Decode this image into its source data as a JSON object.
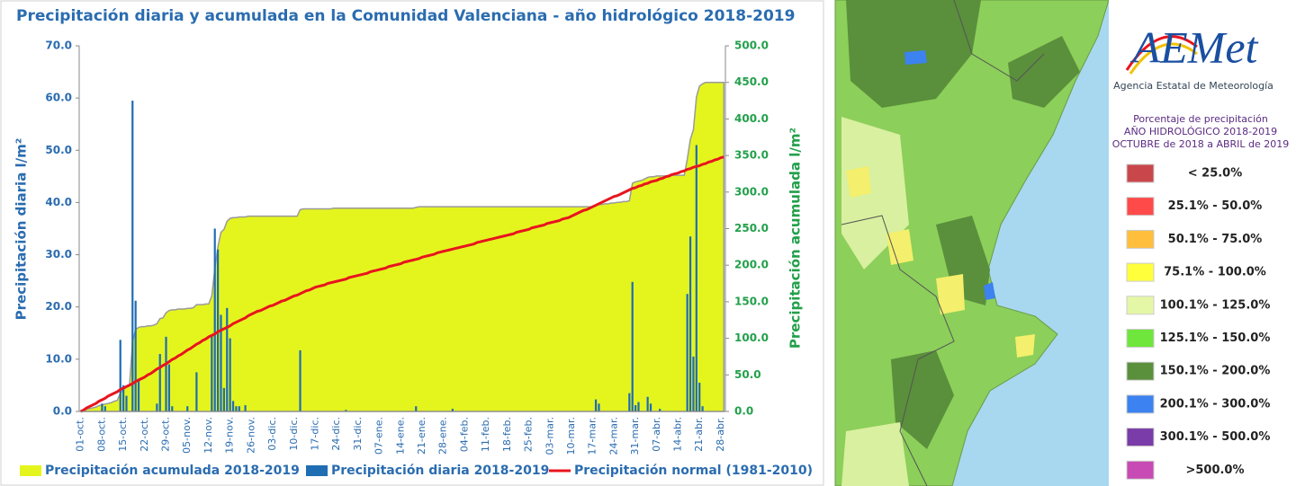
{
  "chart_data": {
    "type": "combo",
    "title": "Precipitación diaria y acumulada en la Comunidad Valenciana - año hidrológico 2018-2019",
    "y_label": "Precipitación  diaria  l/m²",
    "y2_label": "Precipitación  acumulada  l/m²",
    "categories": [
      "01-oct.",
      null,
      null,
      null,
      null,
      null,
      null,
      "08-oct.",
      null,
      null,
      null,
      null,
      null,
      null,
      "15-oct.",
      null,
      null,
      null,
      null,
      null,
      null,
      "22-oct.",
      null,
      null,
      null,
      null,
      null,
      null,
      "29-oct.",
      null,
      null,
      null,
      null,
      null,
      null,
      "05-nov.",
      null,
      null,
      null,
      null,
      null,
      null,
      "12-nov.",
      null,
      null,
      null,
      null,
      null,
      null,
      "19-nov.",
      null,
      null,
      null,
      null,
      null,
      null,
      "26-nov.",
      null,
      null,
      null,
      null,
      null,
      null,
      "03-dic.",
      null,
      null,
      null,
      null,
      null,
      null,
      "10-dic.",
      null,
      null,
      null,
      null,
      null,
      null,
      "17-dic.",
      null,
      null,
      null,
      null,
      null,
      null,
      "24-dic.",
      null,
      null,
      null,
      null,
      null,
      null,
      "31-dic.",
      null,
      null,
      null,
      null,
      null,
      null,
      "07-ene.",
      null,
      null,
      null,
      null,
      null,
      null,
      "14-ene.",
      null,
      null,
      null,
      null,
      null,
      null,
      "21-ene.",
      null,
      null,
      null,
      null,
      null,
      null,
      "28-ene.",
      null,
      null,
      null,
      null,
      null,
      null,
      "04-feb.",
      null,
      null,
      null,
      null,
      null,
      null,
      "11-feb.",
      null,
      null,
      null,
      null,
      null,
      null,
      "18-feb.",
      null,
      null,
      null,
      null,
      null,
      null,
      "25-feb.",
      null,
      null,
      null,
      null,
      null,
      null,
      "03-mar.",
      null,
      null,
      null,
      null,
      null,
      null,
      "10-mar.",
      null,
      null,
      null,
      null,
      null,
      null,
      "17-mar.",
      null,
      null,
      null,
      null,
      null,
      null,
      "24-mar.",
      null,
      null,
      null,
      null,
      null,
      null,
      "31-mar.",
      null,
      null,
      null,
      null,
      null,
      null,
      "07-abr.",
      null,
      null,
      null,
      null,
      null,
      null,
      "14-abr.",
      null,
      null,
      null,
      null,
      null,
      null,
      "21-abr.",
      null,
      null,
      null,
      null,
      null,
      null,
      "28-abr.",
      null
    ],
    "series": [
      {
        "name": "Precipitación acumulada 2018-2019",
        "type": "area",
        "axis": "y2",
        "color": "#e4f51e",
        "values": [
          1,
          2,
          3,
          4,
          5,
          6,
          8,
          9,
          10,
          11,
          12,
          14,
          15,
          25,
          30,
          33,
          35,
          95,
          112,
          115,
          116,
          116,
          117,
          117,
          118,
          120,
          127,
          128,
          135,
          138,
          139,
          139,
          140,
          140,
          140,
          141,
          141,
          142,
          146,
          146,
          146,
          147,
          147,
          158,
          195,
          225,
          245,
          249,
          260,
          264,
          265,
          265,
          266,
          266,
          266,
          267,
          267,
          267,
          267,
          267,
          267,
          267,
          267,
          267,
          267,
          267,
          267,
          267,
          267,
          267,
          267,
          267,
          276,
          277,
          277,
          277,
          277,
          277,
          277,
          277,
          277,
          277,
          277,
          278,
          278,
          278,
          278,
          278,
          278,
          278,
          278,
          278,
          278,
          278,
          278,
          278,
          278,
          278,
          278,
          278,
          278,
          278,
          278,
          278,
          278,
          278,
          278,
          278,
          278,
          278,
          279,
          280,
          280,
          280,
          280,
          280,
          280,
          280,
          280,
          280,
          280,
          280,
          280,
          280,
          280,
          280,
          280,
          280,
          280,
          280,
          280,
          280,
          280,
          280,
          280,
          280,
          280,
          280,
          280,
          280,
          280,
          280,
          280,
          280,
          280,
          280,
          280,
          280,
          280,
          280,
          280,
          280,
          280,
          280,
          280,
          280,
          280,
          280,
          280,
          280,
          280,
          280,
          280,
          280,
          280,
          280,
          280,
          280,
          280,
          282,
          283,
          283,
          284,
          284,
          285,
          285,
          286,
          286,
          287,
          287,
          288,
          312,
          314,
          315,
          316,
          318,
          320,
          321,
          321,
          322,
          322,
          322,
          322,
          322,
          323,
          323,
          323,
          323,
          323,
          345,
          372,
          385,
          430,
          445,
          448,
          450,
          450,
          450,
          450,
          450,
          450,
          450
        ]
      },
      {
        "name": "Precipitación diaria 2018-2019",
        "type": "bar",
        "color": "#1f6db2",
        "values": [
          0,
          0,
          0,
          0,
          0,
          0,
          0,
          1.5,
          1,
          0,
          0,
          0,
          0,
          13.7,
          5,
          3,
          0,
          59.5,
          21.2,
          6,
          0,
          0,
          0,
          0,
          0,
          1.5,
          11,
          0,
          14.3,
          9,
          1,
          0,
          0,
          0,
          0,
          1,
          0,
          0,
          7.5,
          0,
          0,
          0,
          0,
          14.5,
          35,
          31,
          18.5,
          4.5,
          19.8,
          14,
          2,
          1,
          1,
          0,
          1.2,
          0,
          0,
          0,
          0,
          0,
          0,
          0,
          0,
          0,
          0,
          0,
          0,
          0,
          0,
          0,
          0,
          0,
          11.7,
          0,
          0,
          0,
          0,
          0,
          0,
          0,
          0,
          0,
          0,
          0,
          0,
          0,
          0,
          0.3,
          0,
          0,
          0,
          0,
          0,
          0,
          0,
          0,
          0,
          0,
          0,
          0,
          0,
          0,
          0,
          0,
          0,
          0,
          0,
          0,
          0,
          0,
          1,
          0,
          0,
          0,
          0,
          0,
          0,
          0,
          0,
          0,
          0,
          0,
          0.5,
          0,
          0,
          0,
          0,
          0,
          0,
          0,
          0,
          0,
          0,
          0,
          0,
          0,
          0,
          0,
          0,
          0,
          0,
          0,
          0,
          0,
          0,
          0,
          0,
          0,
          0,
          0,
          0,
          0,
          0,
          0,
          0,
          0,
          0,
          0,
          0,
          0,
          0,
          0,
          0,
          0,
          0,
          0,
          0,
          0,
          0,
          2.3,
          1.5,
          0,
          0,
          0,
          0,
          0,
          0,
          0,
          0,
          0,
          3.5,
          24.8,
          1.2,
          1.8,
          0,
          0,
          2.8,
          1.5,
          0,
          0,
          0.5,
          0,
          0,
          0,
          0,
          0,
          0,
          0,
          0,
          22.5,
          33.5,
          10.5,
          51,
          5.5,
          1,
          0,
          0,
          0,
          0,
          0,
          0,
          0
        ]
      },
      {
        "name": "Precipitación normal (1981-2010)",
        "type": "line",
        "axis": "y2",
        "color": "#e8141e",
        "values": [
          0,
          2,
          5,
          7,
          9,
          11,
          14,
          16,
          18,
          21,
          23,
          25,
          27,
          30,
          32,
          34,
          36,
          38,
          41,
          43,
          45,
          47,
          50,
          52,
          55,
          58,
          60,
          63,
          65,
          68,
          71,
          73,
          76,
          78,
          81,
          84,
          86,
          89,
          92,
          94,
          97,
          99,
          102,
          104,
          106,
          109,
          111,
          113,
          115,
          117,
          120,
          122,
          124,
          126,
          128,
          131,
          133,
          135,
          137,
          138,
          140,
          142,
          144,
          145,
          147,
          149,
          151,
          152,
          154,
          156,
          158,
          159,
          161,
          163,
          165,
          166,
          168,
          170,
          171,
          172,
          173,
          175,
          176,
          177,
          178,
          179,
          180,
          181,
          183,
          184,
          185,
          186,
          187,
          188,
          189,
          191,
          192,
          193,
          194,
          195,
          196,
          198,
          199,
          200,
          201,
          202,
          204,
          205,
          206,
          207,
          208,
          209,
          211,
          212,
          213,
          214,
          215,
          217,
          218,
          219,
          220,
          221,
          222,
          223,
          224,
          225,
          226,
          227,
          228,
          229,
          231,
          232,
          233,
          234,
          235,
          236,
          237,
          238,
          239,
          240,
          241,
          242,
          243,
          245,
          246,
          247,
          248,
          249,
          251,
          252,
          253,
          254,
          255,
          257,
          258,
          259,
          260,
          261,
          263,
          264,
          265,
          267,
          269,
          271,
          273,
          275,
          276,
          278,
          280,
          282,
          284,
          286,
          288,
          290,
          292,
          294,
          295,
          297,
          299,
          301,
          303,
          305,
          306,
          308,
          309,
          311,
          312,
          314,
          315,
          316,
          318,
          319,
          321,
          322,
          324,
          325,
          326,
          328,
          329,
          331,
          332,
          334,
          335,
          336,
          338,
          339,
          341,
          342,
          344,
          345,
          347,
          348
        ]
      }
    ],
    "ylim": [
      0,
      70
    ],
    "yticks": [
      {
        "value": 0,
        "label": "0.0"
      },
      {
        "value": 10,
        "label": "10.0"
      },
      {
        "value": 20,
        "label": "20.0"
      },
      {
        "value": 30,
        "label": "30.0"
      },
      {
        "value": 40,
        "label": "40.0"
      },
      {
        "value": 50,
        "label": "50.0"
      },
      {
        "value": 60,
        "label": "60.0"
      },
      {
        "value": 70,
        "label": "70.0"
      }
    ],
    "y2lim": [
      0,
      500
    ],
    "y2ticks": [
      {
        "value": 0,
        "label": "0.0"
      },
      {
        "value": 50,
        "label": "50.0"
      },
      {
        "value": 100,
        "label": "100.0"
      },
      {
        "value": 150,
        "label": "150.0"
      },
      {
        "value": 200,
        "label": "200.0"
      },
      {
        "value": 250,
        "label": "250.0"
      },
      {
        "value": 300,
        "label": "300.0"
      },
      {
        "value": 350,
        "label": "350.0"
      },
      {
        "value": 400,
        "label": "400.0"
      },
      {
        "value": 450,
        "label": "450.0"
      },
      {
        "value": 500,
        "label": "500.0"
      }
    ],
    "grid": false,
    "legend": "bottom"
  },
  "map": {
    "logo": "AEMet",
    "agency": "Agencia Estatal de Meteorología",
    "title": [
      "Porcentaje de precipitación",
      "AÑO HIDROLÓGICO 2018-2019",
      "OCTUBRE de 2018 a ABRIL de 2019"
    ],
    "legend": [
      {
        "label": "< 25.0%",
        "color": "#c9474b"
      },
      {
        "label": "25.1% - 50.0%",
        "color": "#ff4a4a"
      },
      {
        "label": "50.1% - 75.0%",
        "color": "#ffbe3c"
      },
      {
        "label": "75.1% - 100.0%",
        "color": "#ffff3c"
      },
      {
        "label": "100.1% - 125.0%",
        "color": "#e4f7a6"
      },
      {
        "label": "125.1% - 150.0%",
        "color": "#6ee63c"
      },
      {
        "label": "150.1% - 200.0%",
        "color": "#5a8f3c"
      },
      {
        "label": "200.1% - 300.0%",
        "color": "#3c82f0"
      },
      {
        "label": "300.1% - 500.0%",
        "color": "#7a3ca8"
      },
      {
        "label": ">500.0%",
        "color": "#c84ab4"
      }
    ]
  }
}
